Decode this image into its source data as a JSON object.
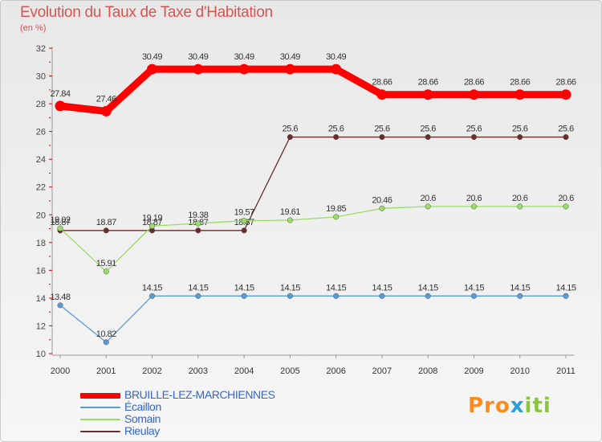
{
  "title": "Evolution du Taux de Taxe d'Habitation",
  "subtitle": "(en %)",
  "brand": {
    "part1": "Pro",
    "part2": "x",
    "part3": "iti"
  },
  "chart_data": {
    "type": "line",
    "title": "Evolution du Taux de Taxe d'Habitation",
    "ylabel": "(en %)",
    "xlabel": "",
    "ylim": [
      10,
      32
    ],
    "yticks": [
      10,
      12,
      14,
      16,
      18,
      20,
      22,
      24,
      26,
      28,
      30,
      32
    ],
    "grid": false,
    "legend_position": "bottom-left",
    "x": [
      "2000",
      "2001",
      "2002",
      "2003",
      "2004",
      "2005",
      "2006",
      "2007",
      "2008",
      "2009",
      "2010",
      "2011"
    ],
    "series": [
      {
        "name": "Rieulay",
        "color": "#6b2c2c",
        "values": [
          18.87,
          18.87,
          18.87,
          18.87,
          18.87,
          25.6,
          25.6,
          25.6,
          25.6,
          25.6,
          25.6,
          25.6
        ],
        "labels": [
          "18.87",
          "18.87",
          "18.87",
          "18.87",
          "18.87",
          "25.6",
          "25.6",
          "25.6",
          "25.6",
          "25.6",
          "25.6",
          "25.6"
        ]
      },
      {
        "name": "Somain",
        "color": "#99dd66",
        "values": [
          19.02,
          15.91,
          19.19,
          19.38,
          19.57,
          19.61,
          19.85,
          20.46,
          20.6,
          20.6,
          20.6,
          20.6
        ],
        "labels": [
          "19.02",
          "15.91",
          "19.19",
          "19.38",
          "19.57",
          "19.61",
          "19.85",
          "20.46",
          "20.6",
          "20.6",
          "20.6",
          "20.6"
        ]
      },
      {
        "name": "Écaillon",
        "color": "#5b9bd5",
        "values": [
          13.48,
          10.82,
          14.15,
          14.15,
          14.15,
          14.15,
          14.15,
          14.15,
          14.15,
          14.15,
          14.15,
          14.15
        ],
        "labels": [
          "13.48",
          "10.82",
          "14.15",
          "14.15",
          "14.15",
          "14.15",
          "14.15",
          "14.15",
          "14.15",
          "14.15",
          "14.15",
          "14.15"
        ]
      },
      {
        "name": "BRUILLE-LEZ-MARCHIENNES",
        "color": "#ff0000",
        "values": [
          27.84,
          27.46,
          30.49,
          30.49,
          30.49,
          30.49,
          30.49,
          28.66,
          28.66,
          28.66,
          28.66,
          28.66
        ],
        "labels": [
          "27.84",
          "27.46",
          "30.49",
          "30.49",
          "30.49",
          "30.49",
          "30.49",
          "28.66",
          "28.66",
          "28.66",
          "28.66",
          "28.66"
        ]
      }
    ],
    "legend": [
      "BRUILLE-LEZ-MARCHIENNES",
      "Écaillon",
      "Somain",
      "Rieulay"
    ]
  }
}
